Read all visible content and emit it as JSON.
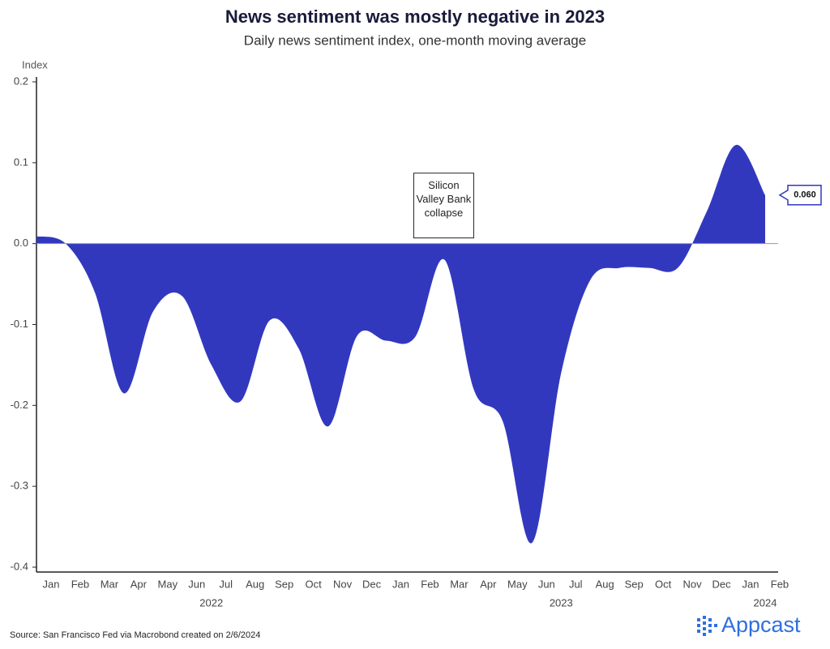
{
  "chart_data": {
    "type": "area",
    "title": "News sentiment was mostly negative in 2023",
    "subtitle": "Daily news sentiment index, one-month moving average",
    "y_label": "Index",
    "x": [
      "2022-01",
      "2022-02",
      "2022-03",
      "2022-04",
      "2022-05",
      "2022-06",
      "2022-07",
      "2022-08",
      "2022-09",
      "2022-10",
      "2022-11",
      "2022-12",
      "2023-01",
      "2023-02",
      "2023-03",
      "2023-04",
      "2023-05",
      "2023-06",
      "2023-07",
      "2023-08",
      "2023-09",
      "2023-10",
      "2023-11",
      "2023-12",
      "2024-01",
      "2024-02"
    ],
    "series": [
      {
        "name": "Daily news sentiment index",
        "color": "#3238be",
        "values": [
          0.009,
          0.0,
          -0.06,
          -0.185,
          -0.084,
          -0.065,
          -0.15,
          -0.195,
          -0.095,
          -0.13,
          -0.226,
          -0.114,
          -0.12,
          -0.115,
          -0.02,
          -0.18,
          -0.22,
          -0.37,
          -0.16,
          -0.045,
          -0.03,
          -0.03,
          -0.03,
          0.04,
          0.122,
          0.06
        ]
      }
    ],
    "end_label": {
      "value": 0.06,
      "label": "0.060"
    },
    "xlim": [
      "2022-01",
      "2024-02"
    ],
    "ylim": [
      -0.4,
      0.2
    ],
    "yticks": [
      {
        "value": 0.2,
        "label": "0.2"
      },
      {
        "value": 0.1,
        "label": "0.1"
      },
      {
        "value": 0,
        "label": "0.0"
      },
      -0.1,
      -0.2,
      -0.3,
      -0.4
    ],
    "xticks": [
      {
        "value": "2022-01",
        "label": "Jan"
      },
      {
        "value": "2022-02",
        "label": "Feb"
      },
      {
        "value": "2022-03",
        "label": "Mar"
      },
      {
        "value": "2022-04",
        "label": "Apr"
      },
      {
        "value": "2022-05",
        "label": "May"
      },
      {
        "value": "2022-06",
        "label": "Jun"
      },
      {
        "value": "2022-07",
        "label": "Jul"
      },
      {
        "value": "2022-08",
        "label": "Aug"
      },
      {
        "value": "2022-09",
        "label": "Sep"
      },
      {
        "value": "2022-10",
        "label": "Oct"
      },
      {
        "value": "2022-11",
        "label": "Nov"
      },
      {
        "value": "2022-12",
        "label": "Dec"
      },
      {
        "value": "2023-01",
        "label": "Jan"
      },
      {
        "value": "2023-02",
        "label": "Feb"
      },
      {
        "value": "2023-03",
        "label": "Mar"
      },
      {
        "value": "2023-04",
        "label": "Apr"
      },
      {
        "value": "2023-05",
        "label": "May"
      },
      {
        "value": "2023-06",
        "label": "Jun"
      },
      {
        "value": "2023-07",
        "label": "Jul"
      },
      {
        "value": "2023-08",
        "label": "Aug"
      },
      {
        "value": "2023-09",
        "label": "Sep"
      },
      {
        "value": "2023-10",
        "label": "Oct"
      },
      {
        "value": "2023-11",
        "label": "Nov"
      },
      {
        "value": "2023-12",
        "label": "Dec"
      },
      {
        "value": "2024-01",
        "label": "Jan"
      },
      {
        "value": "2024-02",
        "label": "Feb"
      }
    ],
    "year_labels": [
      {
        "value": "2022",
        "label": "2022"
      },
      {
        "value": "2023",
        "label": "2023"
      },
      {
        "value": "2024",
        "label": "2024"
      }
    ],
    "annotation": {
      "x": "2023-03",
      "lines": [
        "Silicon",
        "Valley Bank",
        "collapse"
      ]
    },
    "source": "Source: San Francisco Fed via Macrobond created on 2/6/2024",
    "logo": "Appcast"
  }
}
